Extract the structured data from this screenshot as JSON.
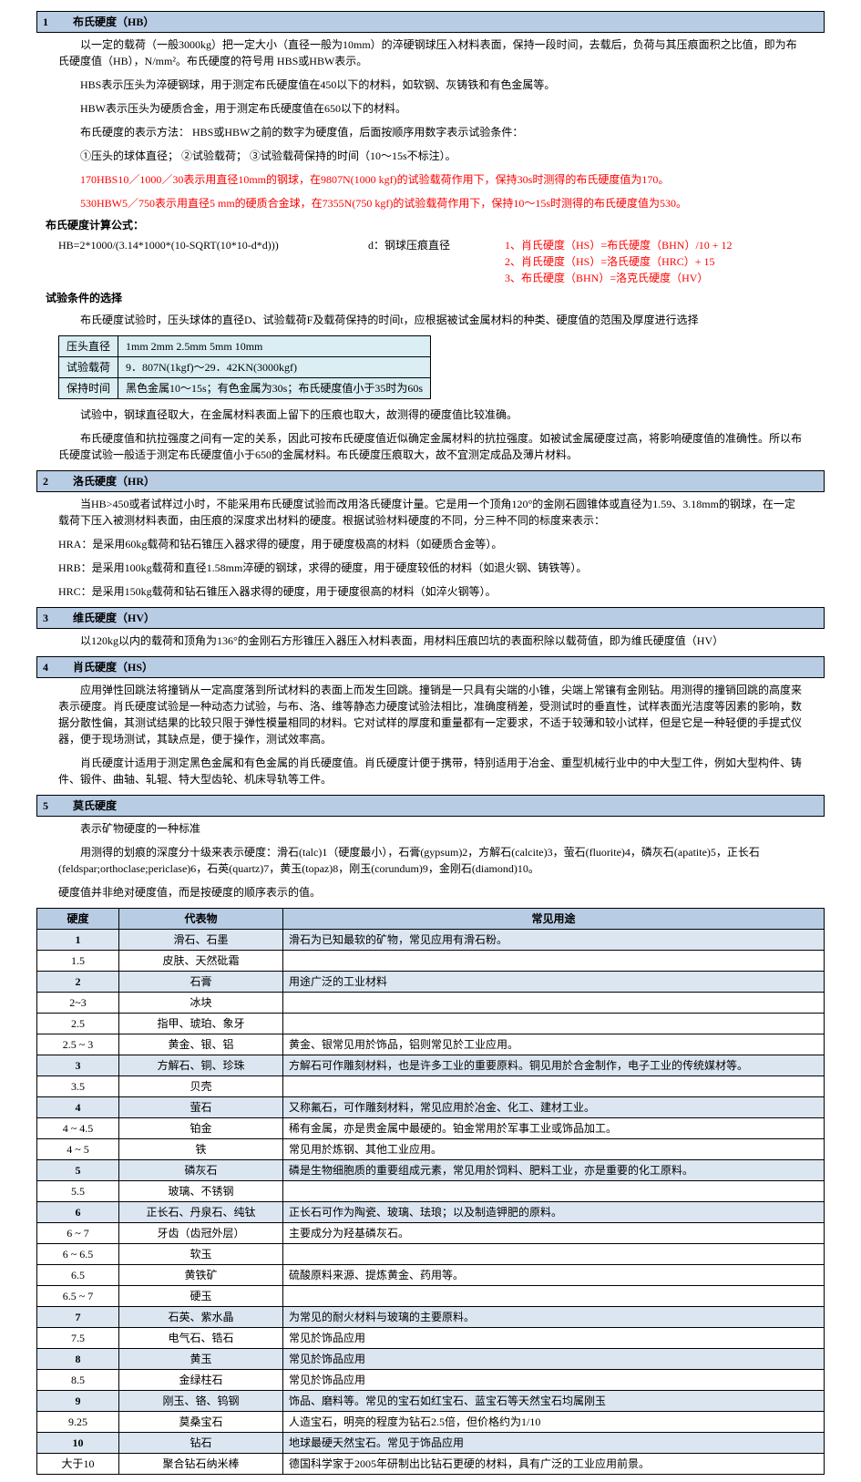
{
  "section1": {
    "num": "1",
    "title": "布氏硬度（HB）",
    "p1": "以一定的载荷（一般3000kg）把一定大小（直径一般为10mm）的淬硬钢球压入材料表面，保持一段时间，去载后，负荷与其压痕面积之比值，即为布氏硬度值（HB），N/mm²。布氏硬度的符号用 HBS或HBW表示。",
    "p2": "HBS表示压头为淬硬钢球，用于测定布氏硬度值在450以下的材料，如软钢、灰铸铁和有色金属等。",
    "p3": "HBW表示压头为硬质合金，用于测定布氏硬度值在650以下的材料。",
    "p4": "布氏硬度的表示方法： HBS或HBW之前的数字为硬度值，后面按顺序用数字表示试验条件：",
    "p5": "①压头的球体直径；  ②试验载荷；  ③试验载荷保持的时间（10～15s不标注）。",
    "p6": "170HBS10／1000／30表示用直径10mm的钢球，在9807N(1000 kgf)的试验载荷作用下，保持30s时测得的布氏硬度值为170。",
    "p7": "530HBW5／750表示用直径5 mm的硬质合金球，在7355N(750 kgf)的试验载荷作用下，保持10～15s时测得的布氏硬度值为530。",
    "calc_title": "布氏硬度计算公式：",
    "formula": "HB=2*1000/(3.14*1000*(10-SQRT(10*10-d*d)))",
    "formula_d": "d：钢球压痕直径",
    "conv1": "1、肖氏硬度（HS）=布氏硬度（BHN）/10 + 12",
    "conv2": "2、肖氏硬度（HS）=洛氏硬度（HRC）+ 15",
    "conv3": "3、布氏硬度（BHN）=洛克氏硬度（HV）",
    "cond_title": "试验条件的选择",
    "cond_p": "布氏硬度试验时，压头球体的直径D、试验载荷F及载荷保持的时间t，应根据被试金属材料的种类、硬度值的范围及厚度进行选择",
    "cond_table": {
      "r1c1": "压头直径",
      "r1c2": "1mm  2mm  2.5mm  5mm  10mm",
      "r2c1": "试验载荷",
      "r2c2": "9．807N(1kgf)～29．42KN(3000kgf)",
      "r3c1": "保持时间",
      "r3c2": "黑色金属10～15s；有色金属为30s；布氏硬度值小于35时为60s"
    },
    "p8": "试验中，钢球直径取大，在金属材料表面上留下的压痕也取大，故测得的硬度值比较准确。",
    "p9": "布氏硬度值和抗拉强度之间有一定的关系，因此可按布氏硬度值近似确定金属材料的抗拉强度。如被试金属硬度过高，将影响硬度值的准确性。所以布氏硬度试验一般适于测定布氏硬度值小于650的金属材料。布氏硬度压痕取大，故不宜测定成品及薄片材料。"
  },
  "section2": {
    "num": "2",
    "title": "洛氏硬度（HR）",
    "p1": "当HB>450或者试样过小时，不能采用布氏硬度试验而改用洛氏硬度计量。它是用一个顶角120°的金刚石圆锥体或直径为1.59、3.18mm的钢球，在一定载荷下压入被测材料表面，由压痕的深度求出材料的硬度。根据试验材料硬度的不同，分三种不同的标度来表示：",
    "hra": "HRA：是采用60kg载荷和钻石锥压入器求得的硬度，用于硬度极高的材料（如硬质合金等）。",
    "hrb": "HRB：是采用100kg载荷和直径1.58mm淬硬的钢球，求得的硬度，用于硬度较低的材料（如退火钢、铸铁等）。",
    "hrc": "HRC：是采用150kg载荷和钻石锥压入器求得的硬度，用于硬度很高的材料（如淬火钢等）。"
  },
  "section3": {
    "num": "3",
    "title": "维氏硬度（HV）",
    "p1": "以120kg以内的载荷和顶角为136°的金刚石方形锥压入器压入材料表面，用材料压痕凹坑的表面积除以载荷值，即为维氏硬度值（HV）"
  },
  "section4": {
    "num": "4",
    "title": "肖氏硬度（HS）",
    "p1": "应用弹性回跳法将撞销从一定高度落到所试材料的表面上而发生回跳。撞销是一只具有尖端的小锥，尖端上常镶有金刚钻。用测得的撞销回跳的高度来表示硬度。肖氏硬度试验是一种动态力试验，与布、洛、维等静态力硬度试验法相比，准确度稍差，受测试时的垂直性，试样表面光洁度等因素的影响，数据分散性偏，其测试结果的比较只限于弹性模量相同的材料。它对试样的厚度和重量都有一定要求，不适于较薄和较小试样，但是它是一种轻便的手提式仪器，便于现场测试，其缺点是，便于操作，测试效率高。",
    "p2": "肖氏硬度计适用于测定黑色金属和有色金属的肖氏硬度值。肖氏硬度计便于携带，特别适用于冶金、重型机械行业中的中大型工件，例如大型构件、铸件、锻件、曲轴、轧辊、特大型齿轮、机床导轨等工件。"
  },
  "section5": {
    "num": "5",
    "title": "莫氏硬度",
    "p1": "表示矿物硬度的一种标准",
    "p2": "用测得的划痕的深度分十级来表示硬度：滑石(talc)1（硬度最小），石膏(gypsum)2，方解石(calcite)3，萤石(fluorite)4，磷灰石(apatite)5，正长石(feldspar;orthoclase;periclase)6，石英(quartz)7，黄玉(topaz)8，刚玉(corundum)9，金刚石(diamond)10。",
    "p3": "硬度值并非绝对硬度值，而是按硬度的顺序表示的值。",
    "table": {
      "headers": [
        "硬度",
        "代表物",
        "常见用途"
      ],
      "rows": [
        {
          "hl": true,
          "h": "1",
          "m": "滑石、石墨",
          "u": "滑石为已知最软的矿物，常见应用有滑石粉。"
        },
        {
          "hl": false,
          "h": "1.5",
          "m": "皮肤、天然砒霜",
          "u": ""
        },
        {
          "hl": true,
          "h": "2",
          "m": "石膏",
          "u": "用途广泛的工业材料"
        },
        {
          "hl": false,
          "h": "2~3",
          "m": "冰块",
          "u": ""
        },
        {
          "hl": false,
          "h": "2.5",
          "m": "指甲、琥珀、象牙",
          "u": ""
        },
        {
          "hl": false,
          "h": "2.5 ~ 3",
          "m": "黄金、银、铝",
          "u": "黄金、银常见用於饰品，铝则常见於工业应用。"
        },
        {
          "hl": true,
          "h": "3",
          "m": "方解石、铜、珍珠",
          "u": "方解石可作雕刻材料，也是许多工业的重要原料。铜见用於合金制作，电子工业的传统媒材等。"
        },
        {
          "hl": false,
          "h": "3.5",
          "m": "贝壳",
          "u": ""
        },
        {
          "hl": true,
          "h": "4",
          "m": "萤石",
          "u": "又称氟石，可作雕刻材料，常见应用於冶金、化工、建材工业。"
        },
        {
          "hl": false,
          "h": "4 ~ 4.5",
          "m": "铂金",
          "u": "稀有金属，亦是贵金属中最硬的。铂金常用於军事工业或饰品加工。"
        },
        {
          "hl": false,
          "h": "4 ~ 5",
          "m": "铁",
          "u": "常见用於炼钢、其他工业应用。"
        },
        {
          "hl": true,
          "h": "5",
          "m": "磷灰石",
          "u": "磷是生物细胞质的重要组成元素，常见用於饲料、肥料工业，亦是重要的化工原料。"
        },
        {
          "hl": false,
          "h": "5.5",
          "m": "玻璃、不锈钢",
          "u": ""
        },
        {
          "hl": true,
          "h": "6",
          "m": "正长石、丹泉石、纯钛",
          "u": "正长石可作为陶瓷、玻璃、珐琅；以及制造钾肥的原料。"
        },
        {
          "hl": false,
          "h": "6 ~ 7",
          "m": "牙齿（齿冠外层）",
          "u": "主要成分为羟基磷灰石。"
        },
        {
          "hl": false,
          "h": "6 ~ 6.5",
          "m": "软玉",
          "u": ""
        },
        {
          "hl": false,
          "h": "6.5",
          "m": "黄铁矿",
          "u": "硫酸原料来源、提炼黄金、药用等。"
        },
        {
          "hl": false,
          "h": "6.5 ~ 7",
          "m": "硬玉",
          "u": ""
        },
        {
          "hl": true,
          "h": "7",
          "m": "石英、紫水晶",
          "u": "为常见的耐火材料与玻璃的主要原料。"
        },
        {
          "hl": false,
          "h": "7.5",
          "m": "电气石、锆石",
          "u": "常见於饰品应用"
        },
        {
          "hl": true,
          "h": "8",
          "m": "黄玉",
          "u": "常见於饰品应用"
        },
        {
          "hl": false,
          "h": "8.5",
          "m": "金绿柱石",
          "u": "常见於饰品应用"
        },
        {
          "hl": true,
          "h": "9",
          "m": "刚玉、铬、钨钢",
          "u": "饰品、磨料等。常见的宝石如红宝石、蓝宝石等天然宝石均属刚玉"
        },
        {
          "hl": false,
          "h": "9.25",
          "m": "莫桑宝石",
          "u": "人造宝石，明亮的程度为钻石2.5倍，但价格约为1/10"
        },
        {
          "hl": true,
          "h": "10",
          "m": "钻石",
          "u": "地球最硬天然宝石。常见于饰品应用"
        },
        {
          "hl": false,
          "h": "大于10",
          "m": "聚合钻石纳米棒",
          "u": "德国科学家于2005年研制出比钻石更硬的材料，具有广泛的工业应用前景。"
        }
      ]
    }
  }
}
